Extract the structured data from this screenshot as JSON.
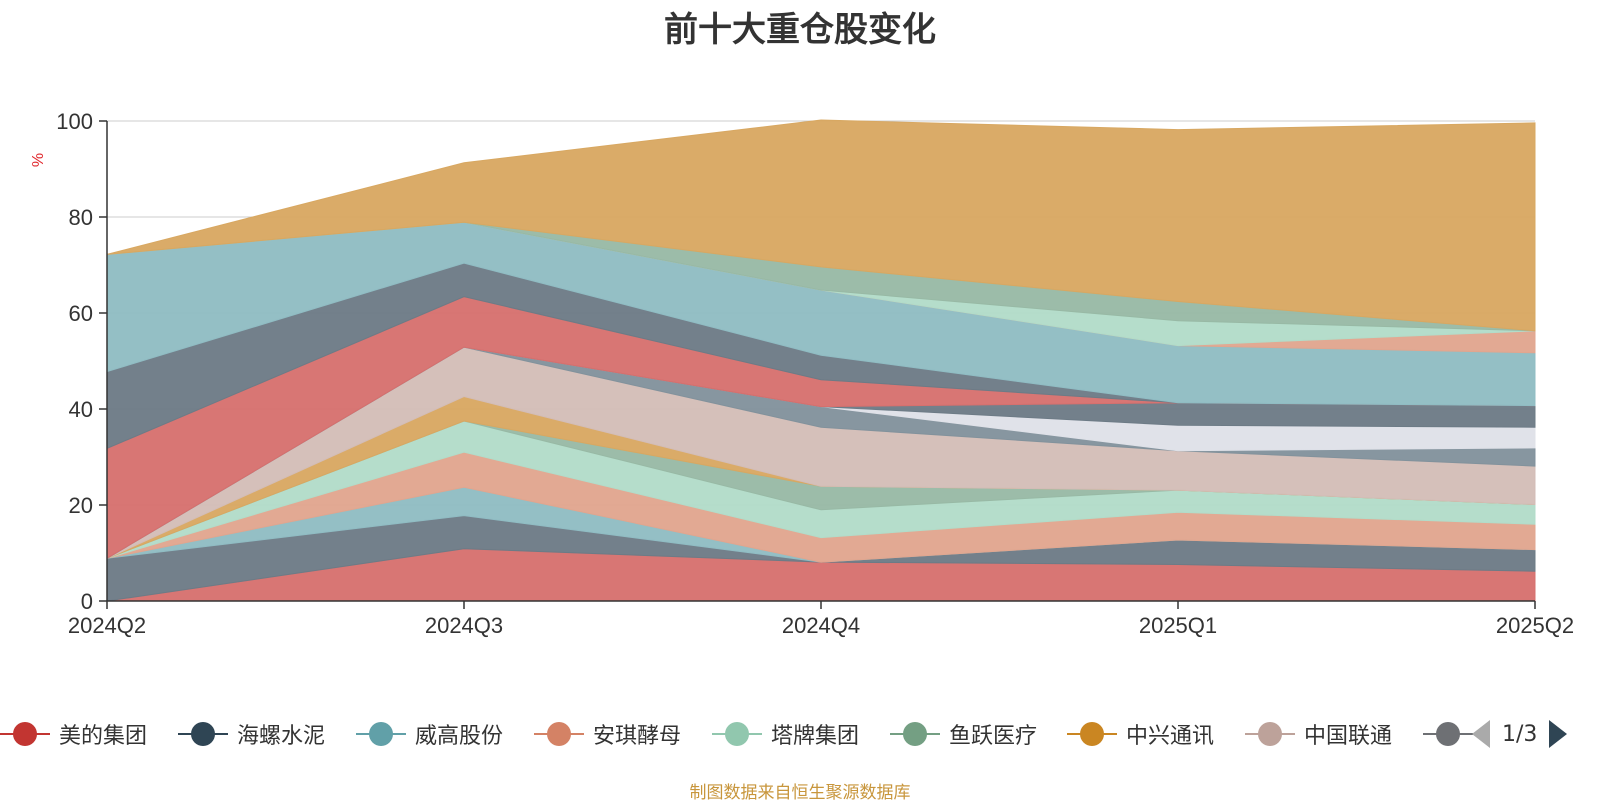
{
  "chart_data": {
    "type": "area",
    "stacked": true,
    "title": "前十大重仓股变化",
    "ylabel": "%",
    "ylim": [
      0,
      100
    ],
    "yticks": [
      0,
      20,
      40,
      60,
      80,
      100
    ],
    "grid": true,
    "legend_position": "bottom",
    "categories": [
      "2024Q2",
      "2024Q3",
      "2024Q4",
      "2025Q1",
      "2025Q2"
    ],
    "series": [
      {
        "name": "美的集团",
        "color": "#d6706e",
        "values": [
          0,
          10.9,
          8.1,
          7.6,
          6.2
        ]
      },
      {
        "name": "海螺水泥",
        "color": "#6d7b86",
        "values": [
          8.9,
          6.9,
          0,
          5.1,
          4.5
        ]
      },
      {
        "name": "威高股份",
        "color": "#90bcc3",
        "values": [
          0,
          5.9,
          0,
          0,
          0
        ]
      },
      {
        "name": "安琪酵母",
        "color": "#e1a68f",
        "values": [
          0,
          7.3,
          5.1,
          5.8,
          5.3
        ]
      },
      {
        "name": "塔牌集团",
        "color": "#b2dcc9",
        "values": [
          0,
          6.5,
          5.8,
          4.6,
          4.1
        ]
      },
      {
        "name": "鱼跃医疗",
        "color": "#98b9a5",
        "values": [
          0,
          0,
          4.9,
          0,
          0
        ]
      },
      {
        "name": "中兴通讯",
        "color": "#d8a862",
        "values": [
          0,
          5.1,
          0,
          0,
          0
        ]
      },
      {
        "name": "中国联通",
        "color": "#d3bdb7",
        "values": [
          0,
          10.3,
          12.3,
          8.2,
          8.0
        ]
      },
      {
        "name": "",
        "color": "#82929c",
        "values": [
          0,
          0,
          4.3,
          0,
          3.8
        ]
      },
      {
        "name": "",
        "color": "#dfe1e8",
        "values": [
          0,
          0,
          0,
          5.3,
          4.3
        ]
      },
      {
        "name": "",
        "color": "#6d7b86",
        "values": [
          0,
          0,
          0,
          4.7,
          4.5
        ]
      },
      {
        "name": "",
        "color": "#d6706e",
        "values": [
          22.9,
          10.5,
          5.6,
          0,
          0
        ]
      },
      {
        "name": "",
        "color": "#6d7b86",
        "values": [
          16.0,
          7.0,
          5.1,
          0,
          0
        ]
      },
      {
        "name": "",
        "color": "#90bcc3",
        "values": [
          24.4,
          8.5,
          13.6,
          11.9,
          11.0
        ]
      },
      {
        "name": "",
        "color": "#e1a68f",
        "values": [
          0,
          0,
          0,
          0,
          4.6
        ]
      },
      {
        "name": "",
        "color": "#b2dcc9",
        "values": [
          0,
          0,
          0,
          5.2,
          0
        ]
      },
      {
        "name": "",
        "color": "#98b9a5",
        "values": [
          0,
          0,
          4.8,
          4.0,
          0
        ]
      },
      {
        "name": "",
        "color": "#d8a862",
        "values": [
          0,
          12.4,
          30.6,
          35.8,
          43.3
        ]
      }
    ]
  },
  "legend": {
    "items": [
      {
        "label": "美的集团",
        "color": "#c23531"
      },
      {
        "label": "海螺水泥",
        "color": "#2f4554"
      },
      {
        "label": "威高股份",
        "color": "#61a0a8"
      },
      {
        "label": "安琪酵母",
        "color": "#d48265"
      },
      {
        "label": "塔牌集团",
        "color": "#91c7ae"
      },
      {
        "label": "鱼跃医疗",
        "color": "#749f83"
      },
      {
        "label": "中兴通讯",
        "color": "#ca8622"
      },
      {
        "label": "中国联通",
        "color": "#bda29a"
      },
      {
        "label": "",
        "color": "#6e7074"
      }
    ],
    "page_indicator": "1/3",
    "prev_arrow_color": "#aaaaaa",
    "next_arrow_color": "#2f4554"
  },
  "footer": {
    "source_text": "制图数据来自恒生聚源数据库"
  }
}
